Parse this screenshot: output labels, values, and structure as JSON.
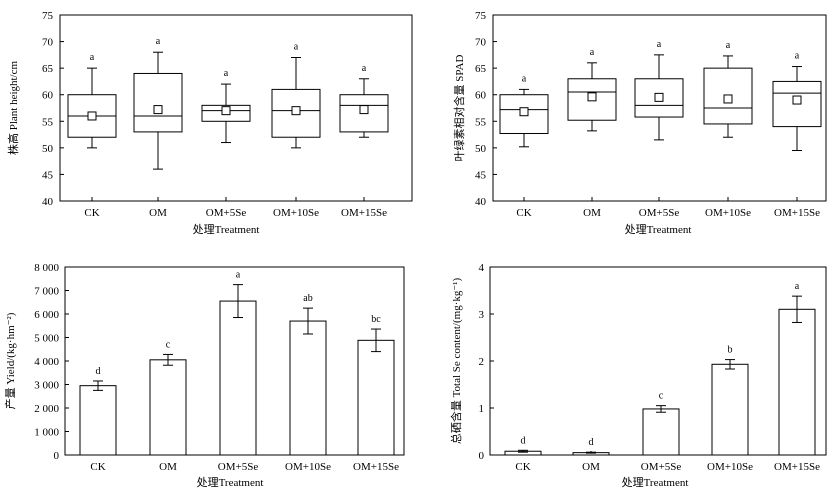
{
  "chart_data": [
    {
      "id": "height",
      "type": "box",
      "xlabel": "处理Treatment",
      "ylabel": "株高 Plant height/cm",
      "ylim": [
        40,
        75
      ],
      "yticks": [
        "40",
        "45",
        "50",
        "55",
        "60",
        "65",
        "70",
        "75"
      ],
      "categories": [
        "CK",
        "OM",
        "OM+5Se",
        "OM+10Se",
        "OM+15Se"
      ],
      "boxes": [
        {
          "min": 50,
          "q1": 52,
          "median": 56,
          "q3": 60,
          "max": 65,
          "mean": 56,
          "label": "a"
        },
        {
          "min": 46,
          "q1": 53,
          "median": 56,
          "q3": 64,
          "max": 68,
          "mean": 57.2,
          "label": "a"
        },
        {
          "min": 51,
          "q1": 55,
          "median": 57,
          "q3": 58,
          "max": 62,
          "mean": 57,
          "label": "a"
        },
        {
          "min": 50,
          "q1": 52,
          "median": 57,
          "q3": 61,
          "max": 67,
          "mean": 57,
          "label": "a"
        },
        {
          "min": 52,
          "q1": 53,
          "median": 58,
          "q3": 60,
          "max": 63,
          "mean": 57.2,
          "label": "a"
        }
      ]
    },
    {
      "id": "spad",
      "type": "box",
      "xlabel": "处理Treatment",
      "ylabel": "叶绿素相对含量 SPAD",
      "ylim": [
        40,
        75
      ],
      "yticks": [
        "40",
        "45",
        "50",
        "55",
        "60",
        "65",
        "70",
        "75"
      ],
      "categories": [
        "CK",
        "OM",
        "OM+5Se",
        "OM+10Se",
        "OM+15Se"
      ],
      "boxes": [
        {
          "min": 50.2,
          "q1": 52.7,
          "median": 57.2,
          "q3": 60,
          "max": 61,
          "mean": 56.8,
          "label": "a"
        },
        {
          "min": 53.2,
          "q1": 55.2,
          "median": 60.5,
          "q3": 63,
          "max": 66,
          "mean": 59.6,
          "label": "a"
        },
        {
          "min": 51.5,
          "q1": 55.8,
          "median": 58,
          "q3": 63,
          "max": 67.5,
          "mean": 59.5,
          "label": "a"
        },
        {
          "min": 52,
          "q1": 54.5,
          "median": 57.5,
          "q3": 65,
          "max": 67.3,
          "mean": 59.2,
          "label": "a"
        },
        {
          "min": 49.5,
          "q1": 54,
          "median": 60.3,
          "q3": 62.5,
          "max": 65.3,
          "mean": 59,
          "label": "a"
        }
      ]
    },
    {
      "id": "yield",
      "type": "bar",
      "xlabel": "处理Treatment",
      "ylabel": "产量 Yield/(kg·hm⁻²)",
      "ylim": [
        0,
        8000
      ],
      "yticks": [
        "0",
        "1 000",
        "2 000",
        "3 000",
        "4 000",
        "5 000",
        "6 000",
        "7 000",
        "8 000"
      ],
      "categories": [
        "CK",
        "OM",
        "OM+5Se",
        "OM+10Se",
        "OM+15Se"
      ],
      "values": [
        2950,
        4050,
        6550,
        5700,
        4880
      ],
      "errors": [
        200,
        230,
        700,
        550,
        480
      ],
      "labels": [
        "d",
        "c",
        "a",
        "ab",
        "bc"
      ]
    },
    {
      "id": "selenium",
      "type": "bar",
      "xlabel": "处理Treatment",
      "ylabel": "总硒含量 Total Se content/(mg·kg⁻¹)",
      "ylim": [
        0,
        4
      ],
      "yticks": [
        "0",
        "1",
        "2",
        "3",
        "4"
      ],
      "categories": [
        "CK",
        "OM",
        "OM+5Se",
        "OM+10Se",
        "OM+15Se"
      ],
      "values": [
        0.08,
        0.05,
        0.98,
        1.93,
        3.1
      ],
      "errors": [
        0.02,
        0.01,
        0.07,
        0.1,
        0.28
      ],
      "labels": [
        "d",
        "d",
        "c",
        "b",
        "a"
      ]
    }
  ]
}
